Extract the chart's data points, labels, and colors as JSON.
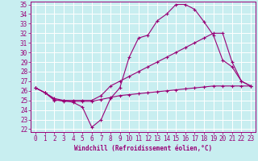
{
  "xlabel": "Windchill (Refroidissement éolien,°C)",
  "bg_color": "#c8eef0",
  "grid_color": "#ffffff",
  "line_color": "#990077",
  "xlim_min": -0.5,
  "xlim_max": 23.5,
  "ylim_min": 21.7,
  "ylim_max": 35.3,
  "yticks": [
    22,
    23,
    24,
    25,
    26,
    27,
    28,
    29,
    30,
    31,
    32,
    33,
    34,
    35
  ],
  "xticks": [
    0,
    1,
    2,
    3,
    4,
    5,
    6,
    7,
    8,
    9,
    10,
    11,
    12,
    13,
    14,
    15,
    16,
    17,
    18,
    19,
    20,
    21,
    22,
    23
  ],
  "line1_x": [
    0,
    1,
    2,
    3,
    4,
    5,
    6,
    7,
    8,
    9,
    10,
    11,
    12,
    13,
    14,
    15,
    16,
    17,
    18,
    19,
    20,
    21,
    22,
    23
  ],
  "line1_y": [
    26.3,
    25.8,
    25.0,
    25.0,
    24.8,
    24.3,
    22.2,
    23.0,
    25.2,
    26.3,
    29.5,
    31.5,
    31.8,
    33.3,
    34.0,
    35.0,
    35.0,
    34.5,
    33.2,
    31.8,
    29.2,
    28.5,
    27.0,
    26.5
  ],
  "line2_x": [
    0,
    1,
    2,
    3,
    4,
    5,
    6,
    7,
    8,
    9,
    10,
    11,
    12,
    13,
    14,
    15,
    16,
    17,
    18,
    19,
    20,
    21,
    22,
    23
  ],
  "line2_y": [
    26.3,
    25.8,
    25.2,
    25.0,
    25.0,
    25.0,
    25.0,
    25.5,
    26.5,
    27.0,
    27.5,
    28.0,
    28.5,
    29.0,
    29.5,
    30.0,
    30.5,
    31.0,
    31.5,
    32.0,
    32.0,
    29.0,
    27.0,
    26.5
  ],
  "line3_x": [
    0,
    1,
    2,
    3,
    4,
    5,
    6,
    7,
    8,
    9,
    10,
    11,
    12,
    13,
    14,
    15,
    16,
    17,
    18,
    19,
    20,
    21,
    22,
    23
  ],
  "line3_y": [
    26.3,
    25.8,
    25.1,
    24.9,
    24.9,
    24.9,
    24.9,
    25.1,
    25.3,
    25.5,
    25.6,
    25.7,
    25.8,
    25.9,
    26.0,
    26.1,
    26.2,
    26.3,
    26.4,
    26.5,
    26.5,
    26.5,
    26.5,
    26.5
  ],
  "marker": "+",
  "markersize": 3,
  "linewidth": 0.8,
  "tick_fontsize": 5.5,
  "xlabel_fontsize": 5.5
}
